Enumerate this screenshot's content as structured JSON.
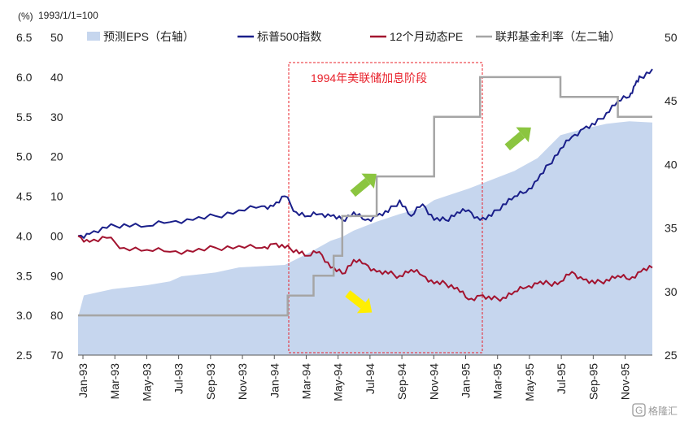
{
  "chart_data": {
    "type": "line",
    "unit_label": "(%)",
    "base_label": "1993/1/1=100",
    "title": "",
    "xlabel": "",
    "ylabel": "",
    "axes": {
      "left_outer": {
        "ticks": [
          "6.5",
          "6.0",
          "5.5",
          "5.0",
          "4.5",
          "4.0",
          "3.5",
          "3.0",
          "2.5"
        ],
        "range": [
          2.5,
          6.5
        ]
      },
      "left_inner": {
        "ticks": [
          "50",
          "40",
          "30",
          "20",
          "10",
          "00",
          "90",
          "80",
          "70"
        ]
      },
      "right": {
        "ticks": [
          "50",
          "45",
          "40",
          "35",
          "30",
          "25"
        ],
        "range": [
          25,
          50
        ]
      }
    },
    "x_tick_labels": [
      "Jan-93",
      "Mar-93",
      "May-93",
      "Jul-93",
      "Sep-93",
      "Nov-93",
      "Jan-94",
      "Mar-94",
      "May-94",
      "Jul-94",
      "Sep-94",
      "Nov-94",
      "Jan-95",
      "Mar-95",
      "May-95",
      "Jul-95",
      "Sep-95",
      "Nov-95"
    ],
    "legend": [
      {
        "name": "预测EPS（右轴）",
        "color": "#c6d6ee",
        "kind": "area"
      },
      {
        "name": "标普500指数",
        "color": "#1a1f8a",
        "kind": "line"
      },
      {
        "name": "12个月动态PE",
        "color": "#a3132f",
        "kind": "line"
      },
      {
        "name": "联邦基金利率（左二轴）",
        "color": "#a5a5a5",
        "kind": "step"
      }
    ],
    "series": [
      {
        "name": "预测EPS（右轴）",
        "axis": "right",
        "x": [
          0,
          1,
          3,
          6,
          8,
          12,
          16,
          18,
          24,
          28,
          32,
          36,
          40,
          44,
          46,
          48,
          52,
          56,
          60,
          62,
          64,
          68,
          72,
          76,
          80,
          84,
          88,
          92,
          96,
          100
        ],
        "y": [
          28.0,
          29.7,
          29.9,
          30.2,
          30.3,
          30.5,
          30.8,
          31.2,
          31.5,
          31.9,
          32.0,
          32.1,
          33.0,
          34.0,
          34.3,
          34.8,
          35.5,
          36.1,
          36.6,
          37.2,
          37.5,
          38.1,
          38.8,
          39.5,
          40.5,
          42.3,
          42.8,
          43.2,
          43.4,
          43.3
        ]
      },
      {
        "name": "标普500指数",
        "axis": "left_inner",
        "x": [
          0,
          2,
          5,
          8,
          12,
          16,
          20,
          24,
          28,
          32,
          34,
          36,
          38,
          40,
          42,
          44,
          46,
          48,
          50,
          52,
          54,
          56,
          58,
          60,
          62,
          64,
          66,
          68,
          70,
          72,
          74,
          76,
          78,
          80,
          82,
          84,
          86,
          88,
          90,
          92,
          94,
          96,
          97,
          98,
          100
        ],
        "y": [
          0,
          0.5,
          2,
          3,
          2.5,
          3.5,
          4,
          5,
          6.5,
          7.5,
          7.5,
          10,
          6,
          5,
          5.5,
          5,
          4,
          6,
          4,
          5,
          6,
          9,
          5,
          8,
          4,
          4,
          6,
          6.5,
          4,
          5,
          8,
          10,
          11,
          14,
          18,
          22,
          25,
          27,
          28,
          31,
          34,
          35,
          38,
          40,
          42
        ]
      },
      {
        "name": "12个月动态PE",
        "axis": "left_inner",
        "x": [
          0,
          2,
          5,
          8,
          12,
          16,
          20,
          24,
          28,
          32,
          34,
          36,
          38,
          40,
          42,
          44,
          46,
          48,
          50,
          52,
          54,
          56,
          58,
          60,
          62,
          64,
          66,
          68,
          70,
          72,
          74,
          76,
          78,
          80,
          82,
          84,
          86,
          88,
          90,
          92,
          94,
          96,
          98,
          100
        ],
        "y": [
          0,
          -1.5,
          -0.5,
          -3,
          -3.5,
          -4,
          -4,
          -3,
          -2.5,
          -3,
          -2,
          -3,
          -3.5,
          -5,
          -4,
          -8,
          -9.5,
          -6,
          -7,
          -9,
          -9.5,
          -10,
          -8.5,
          -10,
          -12,
          -12,
          -13,
          -16,
          -15,
          -16,
          -15.5,
          -14,
          -13,
          -12,
          -12,
          -11.5,
          -9,
          -11,
          -12,
          -11,
          -10,
          -11,
          -9,
          -8
        ]
      },
      {
        "name": "联邦基金利率（左二轴）",
        "axis": "left_outer",
        "step": true,
        "x": [
          0,
          36.5,
          41,
          44.5,
          46,
          52,
          62,
          70,
          84,
          94,
          100
        ],
        "y": [
          3.0,
          3.25,
          3.5,
          3.75,
          4.25,
          4.75,
          5.5,
          6.0,
          5.75,
          5.5,
          5.5
        ]
      }
    ],
    "annotations": [
      {
        "text": "1994年美联储加息阶段",
        "type": "highlight-box",
        "x_range": [
          36.5,
          70
        ]
      }
    ],
    "legend_position": "top",
    "grid": false
  },
  "watermark": {
    "text": "格隆汇",
    "icon": "g-logo-icon"
  }
}
